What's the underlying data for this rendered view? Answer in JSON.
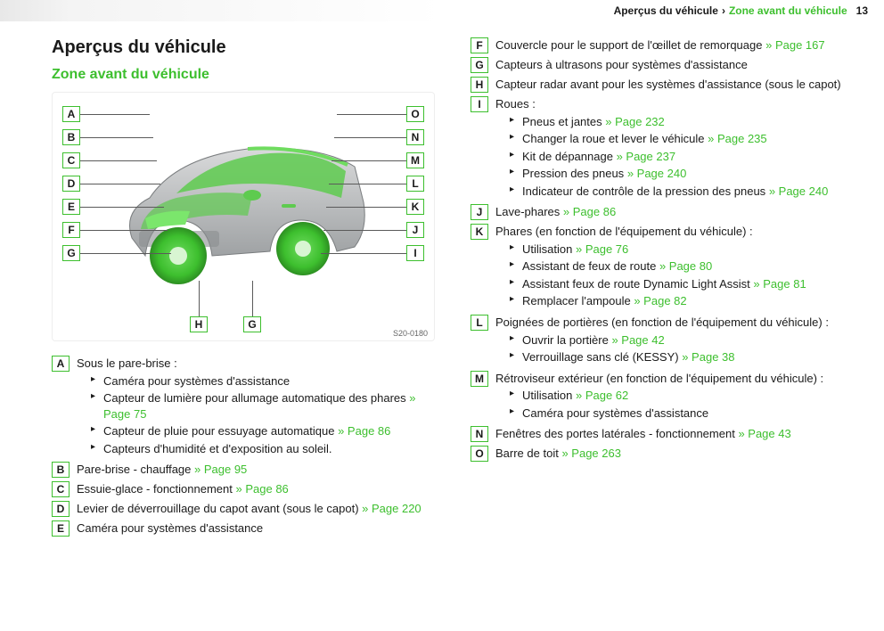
{
  "colors": {
    "accent": "#3dbf2e",
    "text": "#1a1a1a",
    "leader": "#5a5a5a",
    "header_bg_start": "#e8e8e8"
  },
  "header": {
    "crumb1": "Aperçus du véhicule",
    "sep": "›",
    "crumb2": "Zone avant du véhicule",
    "page_number": "13"
  },
  "title": "Aperçus du véhicule",
  "section": "Zone avant du véhicule",
  "diagram": {
    "image_code": "S20-0180",
    "left_labels": [
      "A",
      "B",
      "C",
      "D",
      "E",
      "F",
      "G"
    ],
    "right_labels": [
      "O",
      "N",
      "M",
      "L",
      "K",
      "J",
      "I"
    ],
    "bottom_labels": [
      "H",
      "G"
    ]
  },
  "items": [
    {
      "key": "A",
      "col": "left",
      "text": "Sous le pare-brise :",
      "subs": [
        {
          "text": "Caméra pour systèmes d'assistance"
        },
        {
          "text": "Capteur de lumière pour allumage automatique des phares",
          "ref": "» Page 75"
        },
        {
          "text": "Capteur de pluie pour essuyage automatique",
          "ref": "» Page 86"
        },
        {
          "text": "Capteurs d'humidité et d'exposition au soleil."
        }
      ]
    },
    {
      "key": "B",
      "col": "left",
      "text": "Pare-brise - chauffage",
      "ref": "» Page 95"
    },
    {
      "key": "C",
      "col": "left",
      "text": "Essuie-glace - fonctionnement",
      "ref": "» Page 86"
    },
    {
      "key": "D",
      "col": "left",
      "text": "Levier de déverrouillage du capot avant (sous le capot)",
      "ref": "» Page 220"
    },
    {
      "key": "E",
      "col": "left",
      "text": "Caméra pour systèmes d'assistance"
    },
    {
      "key": "F",
      "col": "right",
      "text": "Couvercle pour le support de l'œillet de remorquage",
      "ref": "» Page 167"
    },
    {
      "key": "G",
      "col": "right",
      "text": "Capteurs à ultrasons pour systèmes d'assistance"
    },
    {
      "key": "H",
      "col": "right",
      "text": "Capteur radar avant pour les systèmes d'assistance (sous le capot)"
    },
    {
      "key": "I",
      "col": "right",
      "text": "Roues :",
      "subs": [
        {
          "text": "Pneus et jantes",
          "ref": "» Page 232"
        },
        {
          "text": "Changer la roue et lever le véhicule",
          "ref": "» Page 235"
        },
        {
          "text": "Kit de dépannage",
          "ref": "» Page 237"
        },
        {
          "text": "Pression des pneus",
          "ref": "» Page 240"
        },
        {
          "text": "Indicateur de contrôle de la pression des pneus",
          "ref": "» Page 240"
        }
      ]
    },
    {
      "key": "J",
      "col": "right",
      "text": "Lave-phares",
      "ref": "» Page 86"
    },
    {
      "key": "K",
      "col": "right",
      "text": "Phares (en fonction de l'équipement du véhicule) :",
      "subs": [
        {
          "text": "Utilisation",
          "ref": "» Page 76"
        },
        {
          "text": "Assistant de feux de route",
          "ref": "» Page 80"
        },
        {
          "text": "Assistant feux de route Dynamic Light Assist",
          "ref": "» Page 81"
        },
        {
          "text": "Remplacer l'ampoule",
          "ref": "» Page 82"
        }
      ]
    },
    {
      "key": "L",
      "col": "right",
      "text": "Poignées de portières (en fonction de l'équipement du véhicule) :",
      "subs": [
        {
          "text": "Ouvrir la portière",
          "ref": "» Page 42"
        },
        {
          "text": "Verrouillage sans clé (KESSY)",
          "ref": "» Page 38"
        }
      ]
    },
    {
      "key": "M",
      "col": "right",
      "text": "Rétroviseur extérieur (en fonction de l'équipement du véhicule) :",
      "subs": [
        {
          "text": "Utilisation",
          "ref": "» Page 62"
        },
        {
          "text": "Caméra pour systèmes d'assistance"
        }
      ]
    },
    {
      "key": "N",
      "col": "right",
      "text": "Fenêtres des portes latérales - fonctionnement",
      "ref": "» Page 43"
    },
    {
      "key": "O",
      "col": "right",
      "text": "Barre de toit",
      "ref": "» Page 263"
    }
  ]
}
